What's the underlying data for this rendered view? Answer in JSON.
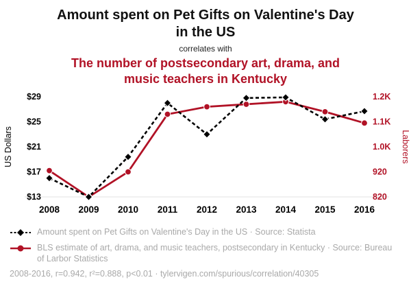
{
  "header": {
    "title": "Amount spent on Pet Gifts on Valentine's Day in the US",
    "connector": "correlates with",
    "subtitle": "The number of postsecondary art, drama, and music teachers in Kentucky"
  },
  "colors": {
    "accent": "#b11226",
    "series_black": "#000000",
    "muted_text": "#a9a9a9",
    "axis_line": "#e2e2e2"
  },
  "chart_data": {
    "type": "line",
    "x": [
      "2008",
      "2009",
      "2010",
      "2011",
      "2012",
      "2013",
      "2014",
      "2015",
      "2016"
    ],
    "series": [
      {
        "name": "Amount spent on Pet Gifts on Valentine's Day in the US",
        "axis": "left",
        "color": "#000000",
        "line_style": "dashed",
        "marker": "diamond",
        "values": [
          16,
          13,
          19.4,
          28,
          23,
          28.8,
          28.9,
          25.4,
          26.7
        ]
      },
      {
        "name": "BLS estimate of art, drama, and music teachers, postsecondary in Kentucky",
        "axis": "right",
        "color": "#b11226",
        "line_style": "solid",
        "marker": "circle",
        "values": [
          925,
          820,
          920,
          1150,
          1180,
          1190,
          1200,
          1160,
          1115
        ]
      }
    ],
    "left_axis": {
      "label": "US Dollars",
      "min": 13,
      "max": 29,
      "tick_values": [
        29,
        25,
        21,
        17,
        13
      ],
      "tick_labels": [
        "$29",
        "$25",
        "$21",
        "$17",
        "$13"
      ]
    },
    "right_axis": {
      "label": "Laborers",
      "min": 820,
      "max": 1220,
      "tick_values": [
        1220,
        1120,
        1020,
        920,
        820
      ],
      "tick_labels": [
        "1.2K",
        "1.1K",
        "1.0K",
        "920",
        "820"
      ]
    },
    "grid": false,
    "legend_position": "bottom"
  },
  "legend": [
    {
      "marker": "black-diamond-dashed",
      "label": "Amount spent on Pet Gifts on Valentine's Day in the US · Source: Statista"
    },
    {
      "marker": "red-circle-solid",
      "label": "BLS estimate of art, drama, and music teachers, postsecondary in Kentucky · Source: Bureau of Larbor Statistics"
    }
  ],
  "footer": "2008-2016, r=0.942, r²=0.888, p<0.01 · tylervigen.com/spurious/correlation/40305"
}
